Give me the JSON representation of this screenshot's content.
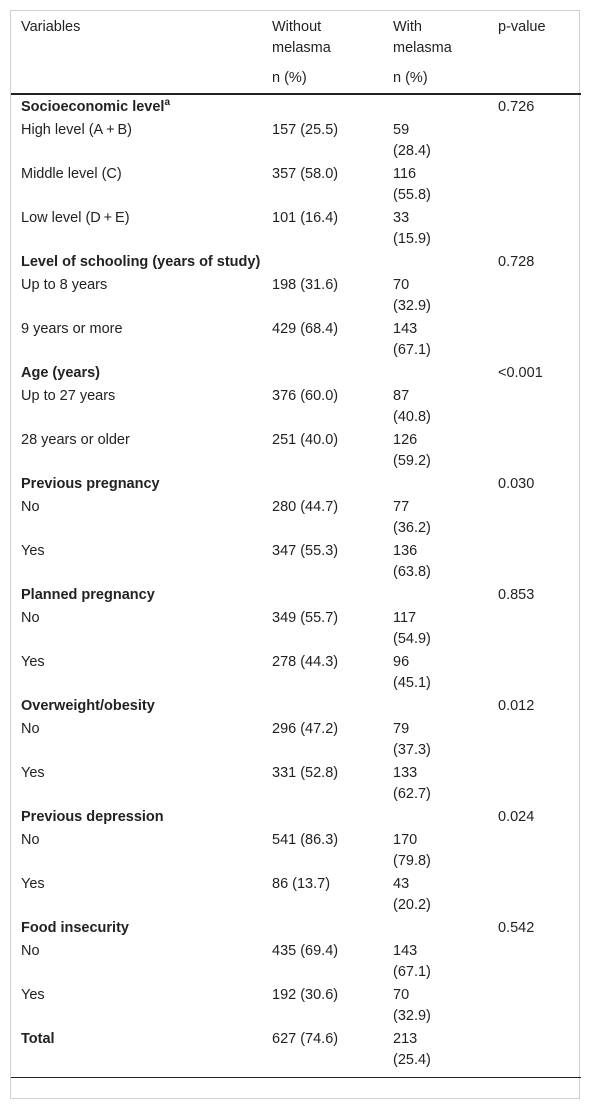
{
  "table": {
    "header": [
      "Variables",
      "Without melasma",
      "With melasma",
      "p-value"
    ],
    "subheader": [
      "n (%)",
      "n (%)"
    ],
    "groups": [
      {
        "title": "Socioeconomic level",
        "sup": "a",
        "p": "0.726",
        "rows": [
          [
            "High level (A + B)",
            "157 (25.5)",
            "59 (28.4)"
          ],
          [
            "Middle level (C)",
            "357 (58.0)",
            "116 (55.8)"
          ],
          [
            "Low level (D + E)",
            "101 (16.4)",
            "33 (15.9)"
          ]
        ]
      },
      {
        "title": "Level of schooling (years of study)",
        "p": "0.728",
        "rows": [
          [
            "Up to 8 years",
            "198 (31.6)",
            "70 (32.9)"
          ],
          [
            "9 years or more",
            "429 (68.4)",
            "143 (67.1)"
          ]
        ]
      },
      {
        "title": "Age (years)",
        "p": "<0.001",
        "rows": [
          [
            "Up to 27 years",
            "376 (60.0)",
            "87 (40.8)"
          ],
          [
            "28 years or older",
            "251 (40.0)",
            "126 (59.2)"
          ]
        ]
      },
      {
        "title": "Previous pregnancy",
        "p": "0.030",
        "rows": [
          [
            "No",
            "280 (44.7)",
            "77 (36.2)"
          ],
          [
            "Yes",
            "347 (55.3)",
            "136 (63.8)"
          ]
        ]
      },
      {
        "title": "Planned pregnancy",
        "p": "0.853",
        "rows": [
          [
            "No",
            "349 (55.7)",
            "117 (54.9)"
          ],
          [
            "Yes",
            "278 (44.3)",
            "96 (45.1)"
          ]
        ]
      },
      {
        "title": "Overweight/obesity",
        "p": "0.012",
        "rows": [
          [
            "No",
            "296 (47.2)",
            "79 (37.3)"
          ],
          [
            "Yes",
            "331 (52.8)",
            "133 (62.7)"
          ]
        ]
      },
      {
        "title": "Previous depression",
        "p": "0.024",
        "rows": [
          [
            "No",
            "541 (86.3)",
            "170 (79.8)"
          ],
          [
            "Yes",
            "86 (13.7)",
            "43 (20.2)"
          ]
        ]
      },
      {
        "title": "Food insecurity",
        "p": "0.542",
        "rows": [
          [
            "No",
            "435 (69.4)",
            "143 (67.1)"
          ],
          [
            "Yes",
            "192 (30.6)",
            "70 (32.9)"
          ]
        ]
      }
    ],
    "total": [
      "Total",
      "627 (74.6)",
      "213 (25.4)"
    ]
  }
}
